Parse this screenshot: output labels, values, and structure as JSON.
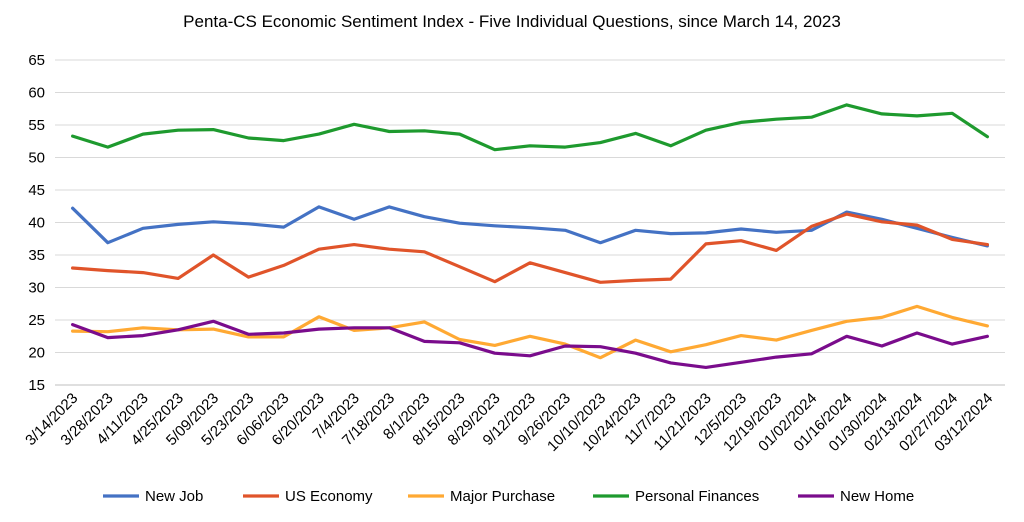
{
  "chart_data": {
    "type": "line",
    "title": "Penta-CS Economic Sentiment Index - Five Individual Questions, since March 14, 2023",
    "xlabel": "",
    "ylabel": "",
    "ylim": [
      15,
      65
    ],
    "yticks": [
      15,
      20,
      25,
      30,
      35,
      40,
      45,
      50,
      55,
      60,
      65
    ],
    "grid": "horizontal",
    "legend": "bottom",
    "categories": [
      "3/14/2023",
      "3/28/2023",
      "4/11/2023",
      "4/25/2023",
      "5/09/2023",
      "5/23/2023",
      "6/06/2023",
      "6/20/2023",
      "7/4/2023",
      "7/18/2023",
      "8/1/2023",
      "8/15/2023",
      "8/29/2023",
      "9/12/2023",
      "9/26/2023",
      "10/10/2023",
      "10/24/2023",
      "11/7/2023",
      "11/21/2023",
      "12/5/2023",
      "12/19/2023",
      "01/02/2024",
      "01/16/2024",
      "01/30/2024",
      "02/13/2024",
      "02/27/2024",
      "03/12/2024"
    ],
    "series": [
      {
        "name": "New Job",
        "color": "#4472C4",
        "values": [
          42.2,
          36.9,
          39.1,
          39.7,
          40.1,
          39.8,
          39.3,
          42.4,
          40.5,
          42.4,
          40.9,
          39.9,
          39.5,
          39.2,
          38.8,
          36.9,
          38.8,
          38.3,
          38.4,
          39.0,
          38.5,
          38.8,
          41.6,
          40.5,
          39.1,
          37.7,
          36.4
        ]
      },
      {
        "name": "US Economy",
        "color": "#E0542A",
        "values": [
          33.0,
          32.6,
          32.3,
          31.4,
          35.0,
          31.6,
          33.4,
          35.9,
          36.6,
          35.9,
          35.5,
          33.2,
          30.9,
          33.8,
          32.3,
          30.8,
          31.1,
          31.3,
          36.7,
          37.2,
          35.7,
          39.4,
          41.3,
          40.1,
          39.6,
          37.4,
          36.6
        ]
      },
      {
        "name": "Major Purchase",
        "color": "#FFA933",
        "values": [
          23.3,
          23.2,
          23.8,
          23.5,
          23.6,
          22.4,
          22.4,
          25.5,
          23.4,
          23.8,
          24.7,
          22.0,
          21.1,
          22.5,
          21.3,
          19.2,
          21.9,
          20.1,
          21.2,
          22.6,
          21.9,
          23.4,
          24.8,
          25.4,
          27.1,
          25.4,
          24.1
        ]
      },
      {
        "name": "Personal Finances",
        "color": "#1E9A2E",
        "values": [
          53.3,
          51.6,
          53.6,
          54.2,
          54.3,
          53.0,
          52.6,
          53.6,
          55.1,
          54.0,
          54.1,
          53.6,
          51.2,
          51.8,
          51.6,
          52.3,
          53.7,
          51.8,
          54.2,
          55.4,
          55.9,
          56.2,
          58.1,
          56.7,
          56.4,
          56.8,
          53.2
        ]
      },
      {
        "name": "New Home",
        "color": "#7A0C8C",
        "values": [
          24.3,
          22.3,
          22.6,
          23.5,
          24.8,
          22.8,
          23.0,
          23.6,
          23.8,
          23.8,
          21.7,
          21.5,
          19.9,
          19.5,
          21.0,
          20.9,
          19.9,
          18.4,
          17.7,
          18.5,
          19.3,
          19.8,
          22.5,
          21.0,
          23.0,
          21.3,
          22.5
        ]
      }
    ]
  }
}
